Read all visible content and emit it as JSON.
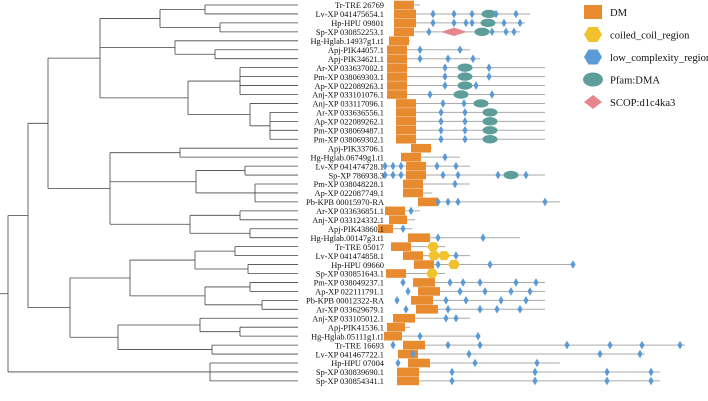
{
  "figure": {
    "legend": [
      {
        "key": "dm",
        "label": "DM",
        "shape": "rect",
        "color": "#E88A2E"
      },
      {
        "key": "coil",
        "label": "coiled_coil_region",
        "shape": "hex",
        "color": "#F2C22E"
      },
      {
        "key": "lc",
        "label": "low_complexity_region",
        "shape": "hex",
        "color": "#5B9BD5"
      },
      {
        "key": "pfam",
        "label": "Pfam:DMA",
        "shape": "ellipse",
        "color": "#5E9E9A"
      },
      {
        "key": "scop",
        "label": "SCOP:d1c4ka3",
        "shape": "diamond",
        "color": "#E8868E"
      }
    ],
    "colors": {
      "dm": "#E88A2E",
      "coil": "#F2C22E",
      "lc": "#5B9BD5",
      "pfam": "#5E9E9A",
      "scop": "#E8868E",
      "line": "#aaaaaa",
      "tree": "#444444"
    },
    "rows": [
      {
        "label": "Tr-TRE 26769",
        "line": [
          394,
          420
        ],
        "dm": [
          [
            394,
            20
          ]
        ],
        "lc": [],
        "pfam": [],
        "coil": [],
        "scop": []
      },
      {
        "label": "Lv-XP 041475654.1",
        "line": [
          394,
          530
        ],
        "dm": [
          [
            394,
            22
          ]
        ],
        "lc": [
          433,
          454,
          472,
          496,
          516
        ],
        "pfam": [
          489
        ],
        "coil": [],
        "scop": []
      },
      {
        "label": "Hp-HPU 09801",
        "line": [
          394,
          525
        ],
        "dm": [
          [
            394,
            22
          ]
        ],
        "lc": [
          433,
          454,
          466,
          472,
          504,
          520
        ],
        "pfam": [
          488
        ],
        "coil": [],
        "scop": []
      },
      {
        "label": "Sp-XP 030852253.1",
        "line": [
          394,
          520
        ],
        "dm": [
          [
            394,
            20
          ]
        ],
        "lc": [
          429,
          492,
          506,
          514
        ],
        "pfam": [
          482
        ],
        "coil": [],
        "scop": [
          454
        ]
      },
      {
        "label": "Hg-Hglab.14937g1.t1",
        "line": [
          389,
          410
        ],
        "dm": [
          [
            389,
            20
          ]
        ],
        "lc": [],
        "pfam": [],
        "coil": [],
        "scop": []
      },
      {
        "label": "Apj-PIK44057.1",
        "line": [
          387,
          470
        ],
        "dm": [
          [
            387,
            20
          ]
        ],
        "lc": [
          420,
          460
        ],
        "pfam": [],
        "coil": [],
        "scop": []
      },
      {
        "label": "Apj-PIK34621.1",
        "line": [
          387,
          480
        ],
        "dm": [
          [
            387,
            20
          ]
        ],
        "lc": [
          420,
          448,
          473
        ],
        "pfam": [],
        "coil": [],
        "scop": []
      },
      {
        "label": "Ar-XP 033637002.1",
        "line": [
          387,
          545
        ],
        "dm": [
          [
            387,
            20
          ]
        ],
        "lc": [
          445,
          489
        ],
        "pfam": [
          465
        ],
        "coil": [],
        "scop": []
      },
      {
        "label": "Pm-XP 038069303.1",
        "line": [
          387,
          545
        ],
        "dm": [
          [
            387,
            20
          ]
        ],
        "lc": [
          445,
          489
        ],
        "pfam": [
          465
        ],
        "coil": [],
        "scop": []
      },
      {
        "label": "Ap-XP 022089263.1",
        "line": [
          387,
          545
        ],
        "dm": [
          [
            387,
            20
          ]
        ],
        "lc": [
          445,
          476
        ],
        "pfam": [
          465
        ],
        "coil": [],
        "scop": []
      },
      {
        "label": "Anj-XP 033101076.1",
        "line": [
          387,
          545
        ],
        "dm": [
          [
            387,
            20
          ]
        ],
        "lc": [
          430,
          492
        ],
        "pfam": [
          461
        ],
        "coil": [],
        "scop": []
      },
      {
        "label": "Anj-XP 033117096.1",
        "line": [
          396,
          545
        ],
        "dm": [
          [
            396,
            20
          ]
        ],
        "lc": [
          443,
          464
        ],
        "pfam": [
          481
        ],
        "coil": [],
        "scop": []
      },
      {
        "label": "Ar-XP 033636556.1",
        "line": [
          396,
          545
        ],
        "dm": [
          [
            396,
            20
          ]
        ],
        "lc": [
          441,
          465
        ],
        "pfam": [
          490
        ],
        "coil": [],
        "scop": []
      },
      {
        "label": "Ap-XP 022089262.1",
        "line": [
          396,
          545
        ],
        "dm": [
          [
            396,
            20
          ]
        ],
        "lc": [
          441,
          465
        ],
        "pfam": [
          490
        ],
        "coil": [],
        "scop": []
      },
      {
        "label": "Pm-XP 038069487.1",
        "line": [
          396,
          545
        ],
        "dm": [
          [
            396,
            20
          ]
        ],
        "lc": [
          441,
          465
        ],
        "pfam": [
          490
        ],
        "coil": [],
        "scop": []
      },
      {
        "label": "Pm-XP 038069302.1",
        "line": [
          396,
          545
        ],
        "dm": [
          [
            396,
            20
          ]
        ],
        "lc": [
          441,
          465
        ],
        "pfam": [
          490
        ],
        "coil": [],
        "scop": []
      },
      {
        "label": "Apj-PIK33706.1",
        "line": [
          411,
          432
        ],
        "dm": [
          [
            411,
            20
          ]
        ],
        "lc": [],
        "pfam": [],
        "coil": [],
        "scop": []
      },
      {
        "label": "Hg-Hglab.06749g1.t1",
        "line": [
          401,
          460
        ],
        "dm": [
          [
            401,
            20
          ]
        ],
        "lc": [
          445
        ],
        "pfam": [],
        "coil": [],
        "scop": []
      },
      {
        "label": "Lv-XP 041474728.1",
        "line": [
          385,
          470
        ],
        "dm": [
          [
            406,
            20
          ]
        ],
        "lc": [
          385,
          393,
          401,
          437,
          456
        ],
        "pfam": [],
        "coil": [],
        "scop": []
      },
      {
        "label": "Sp-XP 786938.3",
        "line": [
          385,
          545
        ],
        "dm": [
          [
            406,
            20
          ]
        ],
        "lc": [
          385,
          393,
          401,
          443,
          458,
          498,
          526
        ],
        "pfam": [
          511
        ],
        "coil": [],
        "scop": []
      },
      {
        "label": "Pm-XP 038048228.1",
        "line": [
          403,
          470
        ],
        "dm": [
          [
            403,
            20
          ]
        ],
        "lc": [
          455
        ],
        "pfam": [],
        "coil": [],
        "scop": []
      },
      {
        "label": "Ap-XP 022087749.1",
        "line": [
          403,
          432
        ],
        "dm": [
          [
            403,
            20
          ]
        ],
        "lc": [],
        "pfam": [],
        "coil": [],
        "scop": []
      },
      {
        "label": "Pb-KPB 00015970-RA",
        "line": [
          418,
          560
        ],
        "dm": [
          [
            418,
            20
          ]
        ],
        "lc": [
          438,
          448,
          458,
          545
        ],
        "pfam": [],
        "coil": [],
        "scop": []
      },
      {
        "label": "Ar-XP 033636851.1",
        "line": [
          385,
          420
        ],
        "dm": [
          [
            385,
            20
          ]
        ],
        "lc": [
          411
        ],
        "pfam": [],
        "coil": [],
        "scop": []
      },
      {
        "label": "Anj-XP 033124332.1",
        "line": [
          389,
          415
        ],
        "dm": [
          [
            389,
            18
          ]
        ],
        "lc": [],
        "pfam": [],
        "coil": [],
        "scop": []
      },
      {
        "label": "Apj-PIK43860.1",
        "line": [
          378,
          412
        ],
        "dm": [
          [
            378,
            15
          ]
        ],
        "lc": [
          403
        ],
        "pfam": [],
        "coil": [],
        "scop": []
      },
      {
        "label": "Hg-Hglab.00147g3.t1",
        "line": [
          408,
          520
        ],
        "dm": [
          [
            408,
            22
          ]
        ],
        "lc": [
          438,
          483
        ],
        "pfam": [],
        "coil": [],
        "scop": []
      },
      {
        "label": "Tr-TRE 05017",
        "line": [
          391,
          445
        ],
        "dm": [
          [
            391,
            20
          ]
        ],
        "lc": [],
        "pfam": [],
        "coil": [
          433
        ],
        "scop": []
      },
      {
        "label": "Lv-XP 041474858.1",
        "line": [
          403,
          470
        ],
        "dm": [
          [
            403,
            20
          ]
        ],
        "lc": [
          456
        ],
        "pfam": [],
        "coil": [
          434,
          444
        ],
        "scop": []
      },
      {
        "label": "Hp-HPU 09660",
        "line": [
          414,
          575
        ],
        "dm": [
          [
            414,
            20
          ]
        ],
        "lc": [
          438,
          490,
          573
        ],
        "pfam": [],
        "coil": [
          454
        ],
        "scop": []
      },
      {
        "label": "Sp-XP 030851643.1",
        "line": [
          386,
          445
        ],
        "dm": [
          [
            386,
            20
          ]
        ],
        "lc": [],
        "pfam": [],
        "coil": [
          432
        ],
        "scop": []
      },
      {
        "label": "Pm-XP 038049237.1",
        "line": [
          413,
          545
        ],
        "dm": [
          [
            413,
            22
          ]
        ],
        "lc": [
          403,
          450,
          463,
          480,
          516,
          536
        ],
        "pfam": [],
        "coil": [],
        "scop": []
      },
      {
        "label": "Ap-XP 022111791.1",
        "line": [
          418,
          545
        ],
        "dm": [
          [
            418,
            22
          ]
        ],
        "lc": [
          408,
          460,
          485,
          511,
          530
        ],
        "pfam": [],
        "coil": [],
        "scop": []
      },
      {
        "label": "Pb-KPB 00012322-RA",
        "line": [
          411,
          545
        ],
        "dm": [
          [
            411,
            22
          ]
        ],
        "lc": [
          397,
          446,
          466,
          501,
          526
        ],
        "pfam": [],
        "coil": [],
        "scop": []
      },
      {
        "label": "Ar-XP 033629679.1",
        "line": [
          416,
          545
        ],
        "dm": [
          [
            416,
            22
          ]
        ],
        "lc": [
          406,
          448,
          480,
          497,
          520
        ],
        "pfam": [],
        "coil": [],
        "scop": []
      },
      {
        "label": "Anj-XP 033105012.1",
        "line": [
          393,
          470
        ],
        "dm": [
          [
            393,
            22
          ]
        ],
        "lc": [
          446,
          456
        ],
        "pfam": [],
        "coil": [],
        "scop": []
      },
      {
        "label": "Apj-PIK41536.1",
        "line": [
          387,
          410
        ],
        "dm": [
          [
            387,
            18
          ]
        ],
        "lc": [],
        "pfam": [],
        "coil": [],
        "scop": []
      },
      {
        "label": "Hg-Hglab.05111g1.t1",
        "line": [
          384,
          480
        ],
        "dm": [
          [
            384,
            18
          ]
        ],
        "lc": [
          420,
          478
        ],
        "pfam": [],
        "coil": [],
        "scop": []
      },
      {
        "label": "Tr-TRE 16693",
        "line": [
          403,
          685
        ],
        "dm": [
          [
            403,
            22
          ]
        ],
        "lc": [
          393,
          448,
          480,
          567,
          610,
          642,
          680
        ],
        "pfam": [],
        "coil": [],
        "scop": []
      },
      {
        "label": "Lv-XP 041467722.1",
        "line": [
          398,
          645
        ],
        "dm": [
          [
            398,
            20
          ]
        ],
        "lc": [
          413,
          469,
          600,
          640
        ],
        "pfam": [],
        "coil": [],
        "scop": []
      },
      {
        "label": "Hp-HPU 07004",
        "line": [
          408,
          560
        ],
        "dm": [
          [
            408,
            22
          ]
        ],
        "lc": [
          398,
          475,
          537
        ],
        "pfam": [],
        "coil": [],
        "scop": []
      },
      {
        "label": "Sp-XP 030839690.1",
        "line": [
          397,
          660
        ],
        "dm": [
          [
            397,
            22
          ]
        ],
        "lc": [
          452,
          535,
          607,
          651
        ],
        "pfam": [],
        "coil": [],
        "scop": []
      },
      {
        "label": "Sp-XP 030854341.1",
        "line": [
          397,
          660
        ],
        "dm": [
          [
            397,
            22
          ]
        ],
        "lc": [
          452,
          535,
          607,
          651
        ],
        "pfam": [],
        "coil": [],
        "scop": []
      }
    ]
  }
}
